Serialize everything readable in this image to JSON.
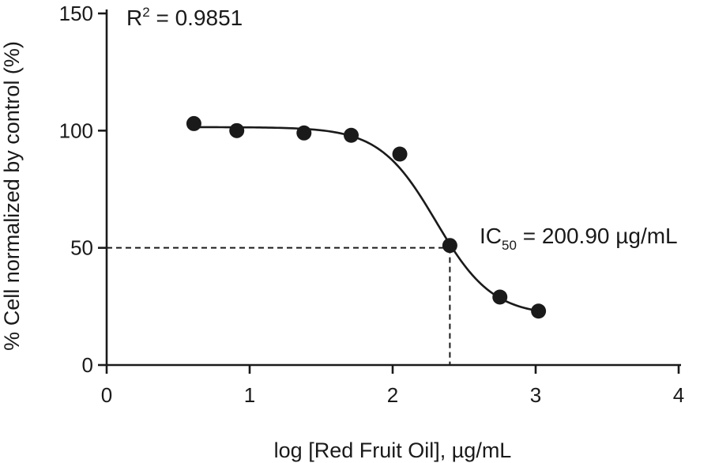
{
  "chart_data": {
    "type": "scatter",
    "xlabel": "log [Red Fruit Oil], µg/mL",
    "ylabel": "% Cell normalized by control (%)",
    "xlim": [
      0,
      4
    ],
    "ylim": [
      0,
      150
    ],
    "x_ticks": [
      0,
      1,
      2,
      3,
      4
    ],
    "y_ticks": [
      0,
      50,
      100,
      150
    ],
    "grid": false,
    "legend": "none",
    "points": {
      "x": [
        0.61,
        0.91,
        1.38,
        1.71,
        2.05,
        2.4,
        2.75,
        3.02
      ],
      "y": [
        103,
        100,
        99,
        98,
        90,
        51,
        29,
        23
      ]
    },
    "fit_curve": {
      "top": 101.5,
      "bottom": 21,
      "log_ic50": 2.303,
      "hill_slope": 2.2,
      "x_range": [
        0.61,
        3.02
      ]
    },
    "reference_lines": {
      "y": 50,
      "x": 2.4
    },
    "annotations": {
      "r2_base": "R",
      "r2_sup": "2",
      "r2_rest": " = 0.9851",
      "ic50_base": "IC",
      "ic50_sub": "50",
      "ic50_rest": " = 200.90 µg/mL"
    },
    "colors": {
      "ink": "#1a1a1a",
      "background": "#ffffff"
    }
  }
}
